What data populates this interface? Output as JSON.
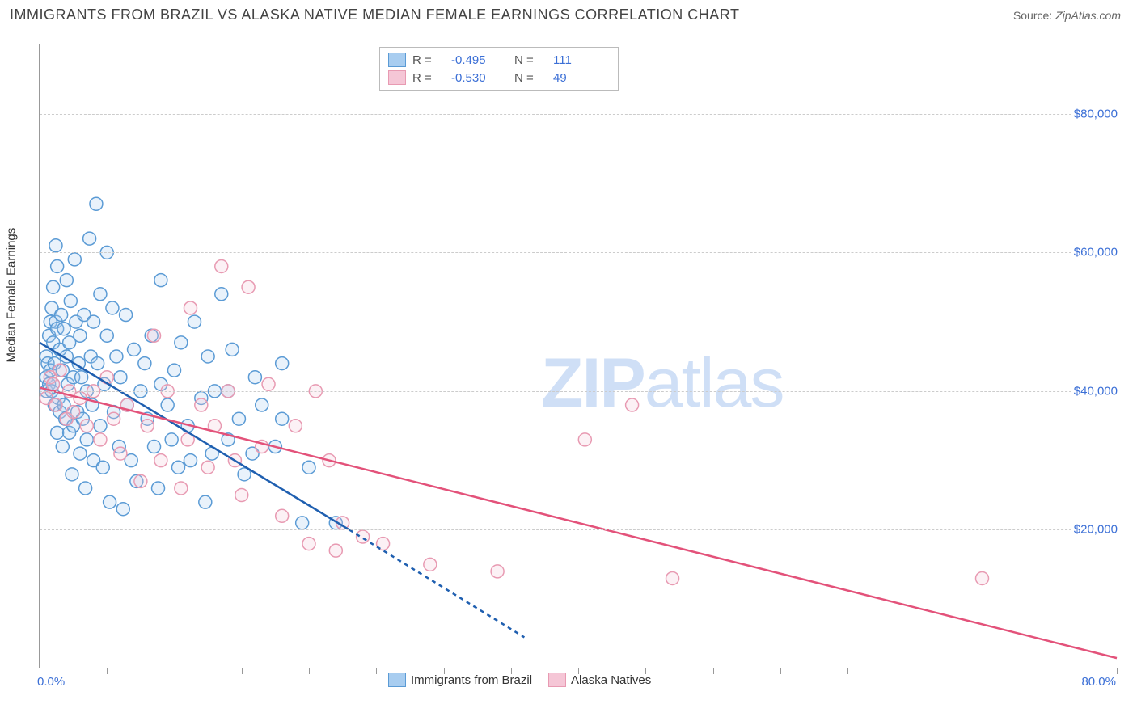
{
  "header": {
    "title": "IMMIGRANTS FROM BRAZIL VS ALASKA NATIVE MEDIAN FEMALE EARNINGS CORRELATION CHART",
    "source_label": "Source:",
    "source_value": "ZipAtlas.com"
  },
  "watermark_a": "ZIP",
  "watermark_b": "atlas",
  "chart": {
    "type": "scatter",
    "yaxis_title": "Median Female Earnings",
    "background_color": "#ffffff",
    "grid_color": "#cccccc",
    "axis_color": "#999999",
    "xlim": [
      0,
      80
    ],
    "ylim": [
      0,
      90000
    ],
    "xaxis_min_label": "0.0%",
    "xaxis_max_label": "80.0%",
    "xtick_step_pct": 5,
    "y_gridlines": [
      {
        "value": 20000,
        "label": "$20,000"
      },
      {
        "value": 40000,
        "label": "$40,000"
      },
      {
        "value": 60000,
        "label": "$60,000"
      },
      {
        "value": 80000,
        "label": "$80,000"
      }
    ],
    "tick_label_color": "#3b6fd6",
    "marker_radius": 8,
    "marker_stroke_width": 1.5,
    "marker_fill_opacity": 0.25,
    "trend_line_width": 2.5,
    "trend_dash_pattern": "5,5",
    "series": [
      {
        "id": "brazil",
        "label": "Immigrants from Brazil",
        "color_fill": "#a8cdf0",
        "color_stroke": "#5b9bd5",
        "color_line": "#1f5fb0",
        "R": "-0.495",
        "N": "111",
        "trend": {
          "x1": 0,
          "y1": 47000,
          "x2": 23,
          "y2": 20000,
          "extend_x2": 36,
          "extend_y2": 4500
        },
        "points": [
          [
            0.5,
            40000
          ],
          [
            0.5,
            42000
          ],
          [
            0.5,
            45000
          ],
          [
            0.6,
            44000
          ],
          [
            0.7,
            48000
          ],
          [
            0.7,
            41000
          ],
          [
            0.8,
            43000
          ],
          [
            0.8,
            50000
          ],
          [
            0.9,
            40000
          ],
          [
            0.9,
            52000
          ],
          [
            1.0,
            55000
          ],
          [
            1.0,
            47000
          ],
          [
            1.0,
            41000
          ],
          [
            1.1,
            38000
          ],
          [
            1.1,
            44000
          ],
          [
            1.2,
            61000
          ],
          [
            1.2,
            50000
          ],
          [
            1.3,
            49000
          ],
          [
            1.3,
            34000
          ],
          [
            1.3,
            58000
          ],
          [
            1.4,
            39000
          ],
          [
            1.5,
            46000
          ],
          [
            1.5,
            37000
          ],
          [
            1.6,
            51000
          ],
          [
            1.7,
            32000
          ],
          [
            1.7,
            43000
          ],
          [
            1.8,
            49000
          ],
          [
            1.8,
            38000
          ],
          [
            1.9,
            36000
          ],
          [
            2.0,
            45000
          ],
          [
            2.0,
            56000
          ],
          [
            2.1,
            41000
          ],
          [
            2.2,
            47000
          ],
          [
            2.2,
            34000
          ],
          [
            2.3,
            53000
          ],
          [
            2.4,
            28000
          ],
          [
            2.5,
            42000
          ],
          [
            2.5,
            35000
          ],
          [
            2.6,
            59000
          ],
          [
            2.7,
            50000
          ],
          [
            2.8,
            37000
          ],
          [
            2.9,
            44000
          ],
          [
            3.0,
            31000
          ],
          [
            3.0,
            48000
          ],
          [
            3.1,
            42000
          ],
          [
            3.2,
            36000
          ],
          [
            3.3,
            51000
          ],
          [
            3.4,
            26000
          ],
          [
            3.5,
            40000
          ],
          [
            3.5,
            33000
          ],
          [
            3.7,
            62000
          ],
          [
            3.8,
            45000
          ],
          [
            3.9,
            38000
          ],
          [
            4.0,
            30000
          ],
          [
            4.0,
            50000
          ],
          [
            4.2,
            67000
          ],
          [
            4.3,
            44000
          ],
          [
            4.5,
            35000
          ],
          [
            4.5,
            54000
          ],
          [
            4.7,
            29000
          ],
          [
            4.8,
            41000
          ],
          [
            5.0,
            60000
          ],
          [
            5.0,
            48000
          ],
          [
            5.2,
            24000
          ],
          [
            5.4,
            52000
          ],
          [
            5.5,
            37000
          ],
          [
            5.7,
            45000
          ],
          [
            5.9,
            32000
          ],
          [
            6.0,
            42000
          ],
          [
            6.2,
            23000
          ],
          [
            6.4,
            51000
          ],
          [
            6.5,
            38000
          ],
          [
            6.8,
            30000
          ],
          [
            7.0,
            46000
          ],
          [
            7.2,
            27000
          ],
          [
            7.5,
            40000
          ],
          [
            7.8,
            44000
          ],
          [
            8.0,
            36000
          ],
          [
            8.3,
            48000
          ],
          [
            8.5,
            32000
          ],
          [
            8.8,
            26000
          ],
          [
            9.0,
            41000
          ],
          [
            9.0,
            56000
          ],
          [
            9.5,
            38000
          ],
          [
            9.8,
            33000
          ],
          [
            10.0,
            43000
          ],
          [
            10.3,
            29000
          ],
          [
            10.5,
            47000
          ],
          [
            11.0,
            35000
          ],
          [
            11.2,
            30000
          ],
          [
            11.5,
            50000
          ],
          [
            12.0,
            39000
          ],
          [
            12.3,
            24000
          ],
          [
            12.5,
            45000
          ],
          [
            12.8,
            31000
          ],
          [
            13.0,
            40000
          ],
          [
            13.5,
            54000
          ],
          [
            14.0,
            33000
          ],
          [
            14.0,
            40000
          ],
          [
            14.3,
            46000
          ],
          [
            14.8,
            36000
          ],
          [
            15.2,
            28000
          ],
          [
            15.8,
            31000
          ],
          [
            16.0,
            42000
          ],
          [
            16.5,
            38000
          ],
          [
            17.5,
            32000
          ],
          [
            18.0,
            44000
          ],
          [
            18.0,
            36000
          ],
          [
            19.5,
            21000
          ],
          [
            20.0,
            29000
          ],
          [
            22.0,
            21000
          ]
        ]
      },
      {
        "id": "alaska",
        "label": "Alaska Natives",
        "color_fill": "#f5c6d6",
        "color_stroke": "#e89ab2",
        "color_line": "#e3527a",
        "R": "-0.530",
        "N": "49",
        "trend": {
          "x1": 0,
          "y1": 40500,
          "x2": 80,
          "y2": 1500,
          "extend_x2": 80,
          "extend_y2": 1500
        },
        "points": [
          [
            0.5,
            39000
          ],
          [
            0.8,
            42000
          ],
          [
            1.0,
            41000
          ],
          [
            1.2,
            38000
          ],
          [
            1.5,
            43000
          ],
          [
            2.0,
            36000
          ],
          [
            2.2,
            40000
          ],
          [
            2.5,
            37000
          ],
          [
            3.0,
            39000
          ],
          [
            3.5,
            35000
          ],
          [
            4.0,
            40000
          ],
          [
            4.5,
            33000
          ],
          [
            5.0,
            42000
          ],
          [
            5.5,
            36000
          ],
          [
            6.0,
            31000
          ],
          [
            6.5,
            38000
          ],
          [
            7.5,
            27000
          ],
          [
            8.0,
            35000
          ],
          [
            8.5,
            48000
          ],
          [
            9.0,
            30000
          ],
          [
            9.5,
            40000
          ],
          [
            10.5,
            26000
          ],
          [
            11.0,
            33000
          ],
          [
            11.2,
            52000
          ],
          [
            12.0,
            38000
          ],
          [
            12.5,
            29000
          ],
          [
            13.0,
            35000
          ],
          [
            13.5,
            58000
          ],
          [
            14.0,
            40000
          ],
          [
            14.5,
            30000
          ],
          [
            15.0,
            25000
          ],
          [
            15.5,
            55000
          ],
          [
            16.5,
            32000
          ],
          [
            17.0,
            41000
          ],
          [
            18.0,
            22000
          ],
          [
            19.0,
            35000
          ],
          [
            20.0,
            18000
          ],
          [
            20.5,
            40000
          ],
          [
            21.5,
            30000
          ],
          [
            22.0,
            17000
          ],
          [
            22.5,
            21000
          ],
          [
            24.0,
            19000
          ],
          [
            25.5,
            18000
          ],
          [
            29.0,
            15000
          ],
          [
            34.0,
            14000
          ],
          [
            40.5,
            33000
          ],
          [
            44.0,
            38000
          ],
          [
            47.0,
            13000
          ],
          [
            70.0,
            13000
          ]
        ]
      }
    ],
    "legend_bottom": [
      {
        "series": "brazil"
      },
      {
        "series": "alaska"
      }
    ]
  }
}
